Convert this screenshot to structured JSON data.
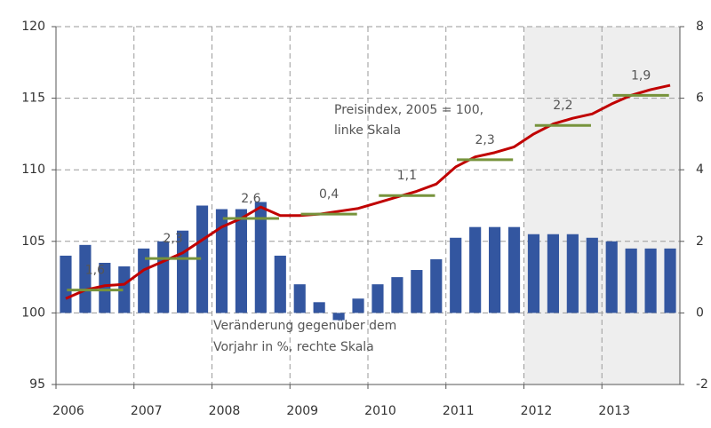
{
  "chart_data": {
    "type": "bar-line",
    "categories": [
      "2006",
      null,
      null,
      null,
      "2007",
      null,
      null,
      null,
      "2008",
      null,
      null,
      null,
      "2009",
      null,
      null,
      null,
      "2010",
      null,
      null,
      null,
      "2011",
      null,
      null,
      null,
      "2012",
      null,
      null,
      null,
      "2013",
      null,
      null,
      null
    ],
    "series": [
      {
        "name": "Veränderung gegenüber dem Vorjahr in %, rechte Skala",
        "kind": "bar",
        "axis": "y2",
        "color": "#3356a0",
        "values": [
          1.6,
          1.9,
          1.4,
          1.3,
          1.8,
          2.0,
          2.3,
          3.0,
          2.9,
          2.9,
          3.1,
          1.6,
          0.8,
          0.3,
          -0.2,
          0.4,
          0.8,
          1.0,
          1.2,
          1.5,
          2.1,
          2.4,
          2.4,
          2.4,
          2.2,
          2.2,
          2.2,
          2.1,
          2.0,
          1.8,
          1.8,
          1.8
        ]
      },
      {
        "name": "Preisindex, 2005 = 100, linke Skala",
        "kind": "line",
        "color": "#c00000",
        "values": [
          101.0,
          101.6,
          101.9,
          102.0,
          103.0,
          103.6,
          104.2,
          105.1,
          106.0,
          106.6,
          107.4,
          106.8,
          106.8,
          106.9,
          107.1,
          107.3,
          107.7,
          108.1,
          108.5,
          109.0,
          110.2,
          110.9,
          111.2,
          111.6,
          112.5,
          113.2,
          113.6,
          113.9,
          114.6,
          115.2,
          115.6,
          115.9
        ]
      }
    ],
    "annual_values": [
      101.6,
      103.8,
      106.6,
      106.9,
      108.2,
      110.7,
      113.1,
      115.2
    ],
    "annual_color": "#77933c",
    "annual_change": {
      "values": [
        1.6,
        2.3,
        2.6,
        0.4,
        1.1,
        2.3,
        2.2,
        1.9
      ],
      "value_labels": [
        "1,6",
        "2,3",
        "2,6",
        "0,4",
        "1,1",
        "2,3",
        "2,2",
        "1,9"
      ]
    },
    "annotations": [
      "Preisindex, 2005 = 100,",
      "linke Skala",
      "Veränderung gegenüber dem",
      "Vorjahr in %, rechte Skala"
    ],
    "ylim": [
      95,
      120
    ],
    "yticks": [
      95,
      100,
      105,
      110,
      115,
      120
    ],
    "y2lim": [
      -2,
      8
    ],
    "y2ticks": [
      -2,
      0,
      2,
      4,
      6,
      8
    ],
    "grid": true
  }
}
